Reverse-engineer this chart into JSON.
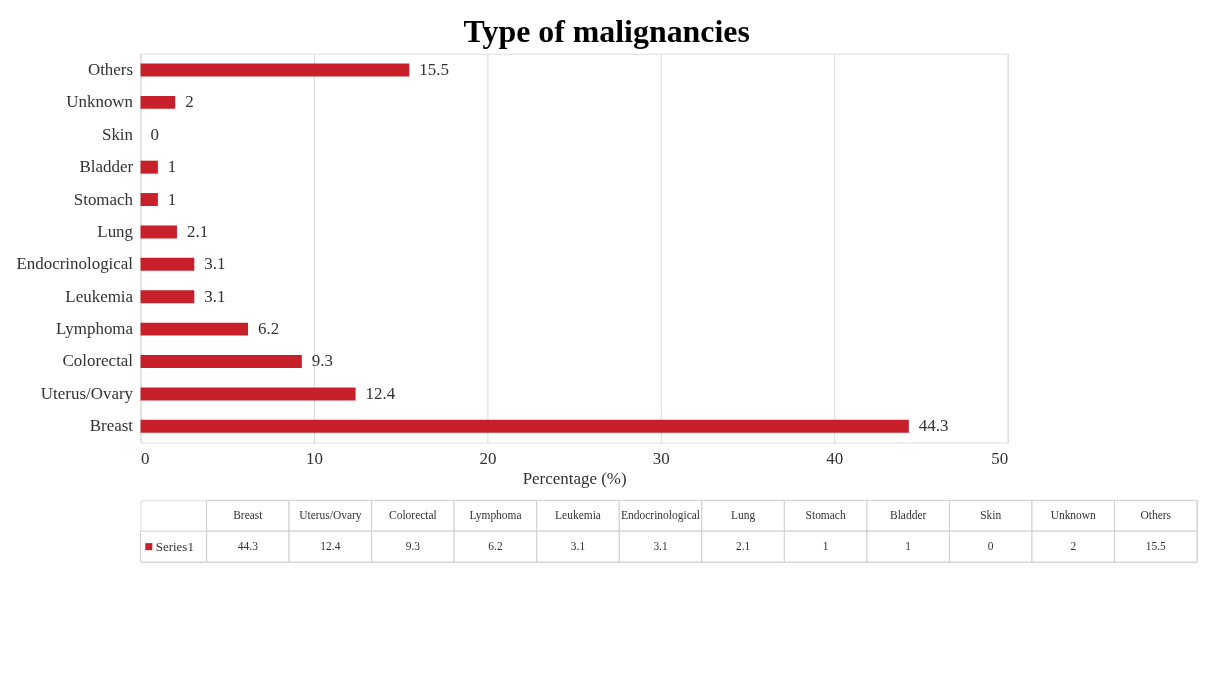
{
  "chart_data": {
    "type": "bar",
    "orientation": "horizontal",
    "title": "Type of malignancies",
    "xlabel": "Percentage (%)",
    "categories": [
      "Others",
      "Unknown",
      "Skin",
      "Bladder",
      "Stomach",
      "Lung",
      "Endocrinological",
      "Leukemia",
      "Lymphoma",
      "Colorectal",
      "Uterus/Ovary",
      "Breast"
    ],
    "series": [
      {
        "name": "Series1",
        "color": "#c8202a",
        "values": [
          15.5,
          2,
          0,
          1,
          1,
          2.1,
          3.1,
          3.1,
          6.2,
          9.3,
          12.4,
          44.3
        ]
      }
    ],
    "value_labels": [
      "15.5",
      "2",
      "0",
      "1",
      "1",
      "2.1",
      "3.1",
      "3.1",
      "6.2",
      "9.3",
      "12.4",
      "44.3"
    ],
    "xlim": [
      0,
      50
    ],
    "xticks": [
      0,
      10,
      20,
      30,
      40,
      50
    ],
    "grid": "x",
    "data_labels": true
  }
}
